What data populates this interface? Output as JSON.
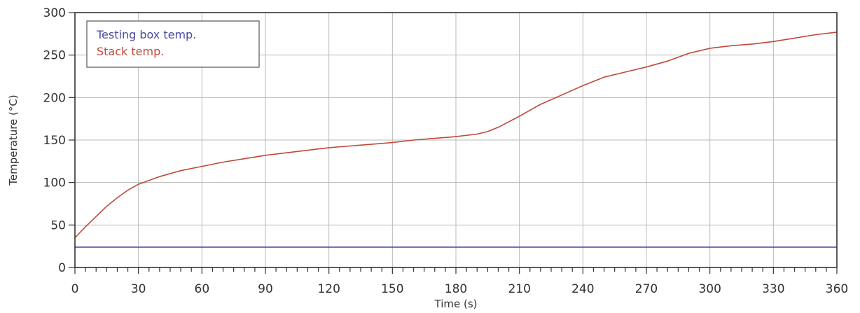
{
  "chart_data": {
    "type": "line",
    "xlabel": "Time (s)",
    "ylabel": "Temperature (°C)",
    "xlim": [
      0,
      360
    ],
    "ylim": [
      0,
      300
    ],
    "xticks": [
      0,
      30,
      60,
      90,
      120,
      150,
      180,
      210,
      240,
      270,
      300,
      330,
      360
    ],
    "yticks": [
      0,
      50,
      100,
      150,
      200,
      250,
      300
    ],
    "grid": true,
    "legend_position": "top-left",
    "series": [
      {
        "name": "Testing box temp.",
        "color": "#4a4aa0",
        "x": [
          0,
          60,
          120,
          180,
          240,
          300,
          360
        ],
        "y": [
          24,
          24,
          24,
          24,
          24,
          24,
          24
        ]
      },
      {
        "name": "Stack temp.",
        "color": "#c0483a",
        "x": [
          0,
          5,
          10,
          15,
          20,
          25,
          30,
          40,
          50,
          60,
          70,
          80,
          90,
          100,
          110,
          120,
          130,
          140,
          150,
          160,
          170,
          180,
          190,
          195,
          200,
          210,
          220,
          230,
          240,
          250,
          260,
          270,
          280,
          290,
          300,
          310,
          320,
          330,
          340,
          350,
          360
        ],
        "y": [
          35,
          48,
          60,
          72,
          82,
          91,
          98,
          107,
          114,
          119,
          124,
          128,
          132,
          135,
          138,
          141,
          143,
          145,
          147,
          150,
          152,
          154,
          157,
          160,
          165,
          178,
          192,
          203,
          214,
          224,
          230,
          236,
          243,
          252,
          258,
          261,
          263,
          266,
          270,
          274,
          277
        ]
      }
    ]
  }
}
